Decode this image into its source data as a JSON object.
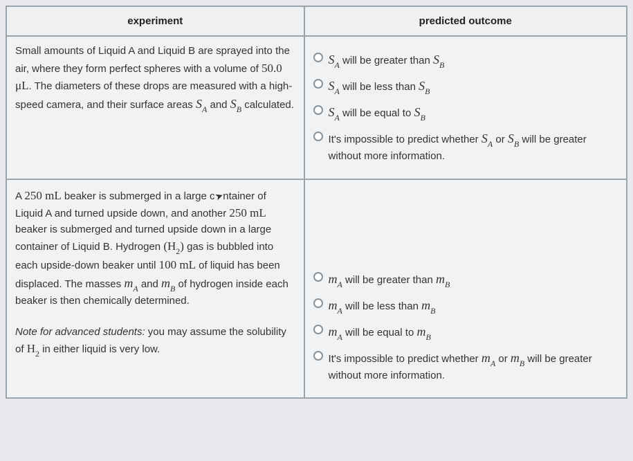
{
  "headers": {
    "experiment": "experiment",
    "outcome": "predicted outcome"
  },
  "row1": {
    "exp_part1": "Small amounts of Liquid A and Liquid B are sprayed into the air, where they form perfect spheres with a volume of ",
    "volume": "50.0 μL",
    "exp_part2": ". The diameters of these drops are measured with a high-speed camera, and their surface areas ",
    "exp_part3": " and ",
    "exp_part4": " calculated.",
    "opt1a": " will be greater than ",
    "opt2a": " will be less than ",
    "opt3a": " will be equal to ",
    "opt4a": "It's impossible to predict whether ",
    "opt4b": " or ",
    "opt4c": " will be greater without more information."
  },
  "row2": {
    "exp_a": "A ",
    "vol250": "250 mL",
    "exp_b": " beaker is submerged in a large c",
    "exp_c": "ntainer of Liquid A and turned upside down, and another ",
    "exp_d": " beaker is submerged and turned upside down in a large container of Liquid B. Hydrogen ",
    "h2_open": "(",
    "h2_close": ")",
    "exp_e": " gas is bubbled into each upside-down beaker until ",
    "vol100": "100 mL",
    "exp_f": " of liquid has been displaced. The masses ",
    "exp_g": " and ",
    "exp_h": " of hydrogen inside each beaker is then chemically determined.",
    "note_label": "Note for advanced students:",
    "note_text": " you may assume the solubility of ",
    "note_end": " in either liquid is very low.",
    "opt1a": " will be greater than ",
    "opt2a": " will be less than ",
    "opt3a": " will be equal to ",
    "opt4a": "It's impossible to predict whether ",
    "opt4b": " or ",
    "opt4c": " will be greater without more information."
  },
  "vars": {
    "S": "S",
    "m": "m",
    "H": "H",
    "A": "A",
    "B": "B",
    "two": "2"
  },
  "colors": {
    "border": "#9aa4ad",
    "background": "#f0f2f4",
    "text": "#333333"
  }
}
